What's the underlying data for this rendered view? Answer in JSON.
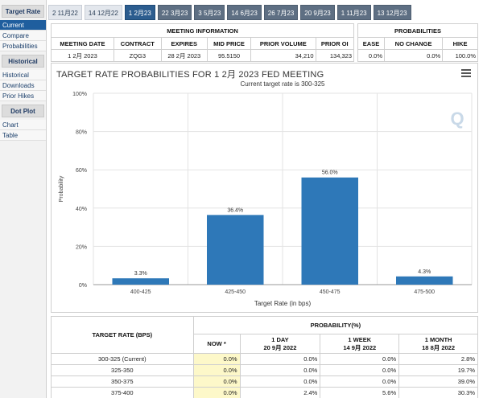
{
  "sidebar": {
    "sections": [
      {
        "title": "Target Rate",
        "items": [
          {
            "label": "Current",
            "active": true
          },
          {
            "label": "Compare",
            "active": false
          },
          {
            "label": "Probabilities",
            "active": false
          }
        ]
      },
      {
        "title": "Historical",
        "items": [
          {
            "label": "Historical",
            "active": false
          },
          {
            "label": "Downloads",
            "active": false
          },
          {
            "label": "Prior Hikes",
            "active": false
          }
        ]
      },
      {
        "title": "Dot Plot",
        "items": [
          {
            "label": "Chart",
            "active": false
          },
          {
            "label": "Table",
            "active": false
          }
        ]
      }
    ]
  },
  "tabs": [
    {
      "label": "2 11月22",
      "style": "light"
    },
    {
      "label": "14 12月22",
      "style": "light"
    },
    {
      "label": "1 2月23",
      "style": "active"
    },
    {
      "label": "22 3月23",
      "style": "dark"
    },
    {
      "label": "3 5月23",
      "style": "dark"
    },
    {
      "label": "14 6月23",
      "style": "dark"
    },
    {
      "label": "26 7月23",
      "style": "dark"
    },
    {
      "label": "20 9月23",
      "style": "dark"
    },
    {
      "label": "1 11月23",
      "style": "dark"
    },
    {
      "label": "13 12月23",
      "style": "dark"
    }
  ],
  "meeting_info": {
    "header": "MEETING INFORMATION",
    "columns": [
      "MEETING DATE",
      "CONTRACT",
      "EXPIRES",
      "MID PRICE",
      "PRIOR VOLUME",
      "PRIOR OI"
    ],
    "values": [
      "1 2月 2023",
      "ZQG3",
      "28 2月 2023",
      "95.5150",
      "34,210",
      "134,323"
    ]
  },
  "probabilities": {
    "header": "PROBABILITIES",
    "columns": [
      "EASE",
      "NO CHANGE",
      "HIKE"
    ],
    "values": [
      "0.0%",
      "0.0%",
      "100.0%"
    ]
  },
  "chart": {
    "title": "TARGET RATE PROBABILITIES FOR 1 2月 2023 FED MEETING",
    "subtitle": "Current target rate is 300-325",
    "logo": "Q"
  },
  "chart_data": {
    "type": "bar",
    "categories": [
      "400-425",
      "425-450",
      "450-475",
      "475-500"
    ],
    "values": [
      3.3,
      36.4,
      56.0,
      4.3
    ],
    "data_labels": [
      "3.3%",
      "36.4%",
      "56.0%",
      "4.3%"
    ],
    "title": "TARGET RATE PROBABILITIES FOR 1 2月 2023 FED MEETING",
    "subtitle": "Current target rate is 300-325",
    "xlabel": "Target Rate (in bps)",
    "ylabel": "Probability",
    "ylim": [
      0,
      100
    ],
    "yticks": [
      "0%",
      "20%",
      "40%",
      "60%",
      "80%",
      "100%"
    ],
    "grid": true,
    "bar_color": "#2e78b8"
  },
  "bottom_table": {
    "rate_header": "TARGET RATE (BPS)",
    "prob_header": "PROBABILITY(%)",
    "columns": [
      {
        "line1": "NOW *",
        "line2": ""
      },
      {
        "line1": "1 DAY",
        "line2": "20 9月 2022"
      },
      {
        "line1": "1 WEEK",
        "line2": "14 9月 2022"
      },
      {
        "line1": "1 MONTH",
        "line2": "18 8月 2022"
      }
    ],
    "rows": [
      {
        "rate": "300-325 (Current)",
        "cells": [
          "0.0%",
          "0.0%",
          "0.0%",
          "2.8%"
        ]
      },
      {
        "rate": "325-350",
        "cells": [
          "0.0%",
          "0.0%",
          "0.0%",
          "19.7%"
        ]
      },
      {
        "rate": "350-375",
        "cells": [
          "0.0%",
          "0.0%",
          "0.0%",
          "39.0%"
        ]
      },
      {
        "rate": "375-400",
        "cells": [
          "0.0%",
          "2.4%",
          "5.6%",
          "30.3%"
        ]
      }
    ]
  }
}
